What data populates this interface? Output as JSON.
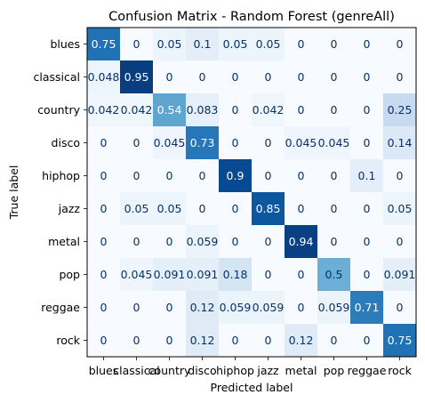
{
  "chart_data": {
    "type": "heatmap",
    "title": "Confusion Matrix - Random Forest (genreAll)",
    "xlabel": "Predicted label",
    "ylabel": "True label",
    "labels": [
      "blues",
      "classical",
      "country",
      "disco",
      "hiphop",
      "jazz",
      "metal",
      "pop",
      "reggae",
      "rock"
    ],
    "value_text": [
      [
        "0.75",
        "0",
        "0.05",
        "0.1",
        "0.05",
        "0.05",
        "0",
        "0",
        "0",
        "0"
      ],
      [
        "0.048",
        "0.95",
        "0",
        "0",
        "0",
        "0",
        "0",
        "0",
        "0",
        "0"
      ],
      [
        "0.042",
        "0.042",
        "0.54",
        "0.083",
        "0",
        "0.042",
        "0",
        "0",
        "0",
        "0.25"
      ],
      [
        "0",
        "0",
        "0.045",
        "0.73",
        "0",
        "0",
        "0.045",
        "0.045",
        "0",
        "0.14"
      ],
      [
        "0",
        "0",
        "0",
        "0",
        "0.9",
        "0",
        "0",
        "0",
        "0.1",
        "0"
      ],
      [
        "0",
        "0.05",
        "0.05",
        "0",
        "0",
        "0.85",
        "0",
        "0",
        "0",
        "0.05"
      ],
      [
        "0",
        "0",
        "0",
        "0.059",
        "0",
        "0",
        "0.94",
        "0",
        "0",
        "0"
      ],
      [
        "0",
        "0.045",
        "0.091",
        "0.091",
        "0.18",
        "0",
        "0",
        "0.5",
        "0",
        "0.091"
      ],
      [
        "0",
        "0",
        "0",
        "0.12",
        "0.059",
        "0.059",
        "0",
        "0.059",
        "0.71",
        "0"
      ],
      [
        "0",
        "0",
        "0",
        "0.12",
        "0",
        "0",
        "0.12",
        "0",
        "0",
        "0.75"
      ]
    ],
    "colormap": "Blues",
    "color_range": [
      0,
      1
    ],
    "grid": false,
    "colorbar": false
  }
}
